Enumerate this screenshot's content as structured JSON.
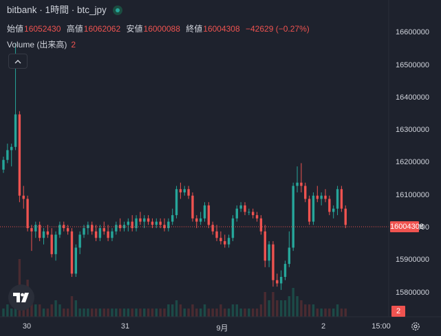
{
  "header": {
    "title": "bitbank · 1時間 · btc_jpy",
    "status_color": "#26a69a"
  },
  "ohlc": {
    "open_label": "始値",
    "open_value": "16052430",
    "high_label": "高値",
    "high_value": "16062062",
    "low_label": "安値",
    "low_value": "16000088",
    "close_label": "終値",
    "close_value": "16004308",
    "change": "−42629 (−0.27%)"
  },
  "volume_legend": {
    "label": "Volume (出来高)",
    "value": "2"
  },
  "price_axis": {
    "ticks": [
      "16600000",
      "16500000",
      "16400000",
      "16300000",
      "16200000",
      "16100000",
      "16000000",
      "15900000",
      "15800000"
    ],
    "current_price_tag": "16004308",
    "volume_tag": "2"
  },
  "time_axis": {
    "ticks": [
      "30",
      "31",
      "9月",
      "2",
      "15:00"
    ]
  },
  "colors": {
    "up": "#26a69a",
    "down": "#ef5350",
    "background": "#1e222d",
    "up_volume": "#1c4a47",
    "down_volume": "#4a2b31"
  },
  "icons": {
    "collapse": "chevron-up-icon",
    "logo": "tradingview-logo",
    "settings": "gear-icon"
  },
  "chart_data": {
    "type": "candlestick",
    "interval": "1時間",
    "symbol": "btc_jpy",
    "y_ticks": [
      15800000,
      15900000,
      16000000,
      16100000,
      16200000,
      16300000,
      16400000,
      16500000,
      16600000
    ],
    "x_ticks": [
      "30",
      "31",
      "9月",
      "2",
      "15:00"
    ],
    "current_price": 16004308,
    "candles": [
      [
        16180000,
        16220000,
        16170000,
        16210000,
        2
      ],
      [
        16210000,
        16260000,
        16200000,
        16240000,
        3
      ],
      [
        16240000,
        16260000,
        16190000,
        16250000,
        2
      ],
      [
        16250000,
        16570000,
        16240000,
        16350000,
        6
      ],
      [
        16350000,
        16360000,
        16080000,
        16100000,
        14
      ],
      [
        16100000,
        16130000,
        16060000,
        16090000,
        5
      ],
      [
        16090000,
        16100000,
        15990000,
        16000000,
        9
      ],
      [
        16000000,
        16010000,
        15930000,
        15990000,
        4
      ],
      [
        15990000,
        16020000,
        15970000,
        16010000,
        3
      ],
      [
        16010000,
        16020000,
        15960000,
        15970000,
        3
      ],
      [
        15970000,
        16000000,
        15950000,
        15990000,
        2
      ],
      [
        15990000,
        16010000,
        15970000,
        15980000,
        2
      ],
      [
        15980000,
        16000000,
        15910000,
        15920000,
        3
      ],
      [
        15920000,
        15990000,
        15900000,
        15980000,
        4
      ],
      [
        15980000,
        16020000,
        15970000,
        16010000,
        3
      ],
      [
        16010000,
        16020000,
        15990000,
        16000000,
        2
      ],
      [
        16000000,
        16010000,
        15980000,
        15990000,
        2
      ],
      [
        15990000,
        16000000,
        15850000,
        15860000,
        5
      ],
      [
        15860000,
        15950000,
        15850000,
        15940000,
        4
      ],
      [
        15940000,
        15990000,
        15920000,
        15980000,
        2
      ],
      [
        15980000,
        16010000,
        15970000,
        16000000,
        2
      ],
      [
        16000000,
        16020000,
        15980000,
        16010000,
        2
      ],
      [
        16010000,
        16020000,
        15980000,
        15990000,
        2
      ],
      [
        15990000,
        16010000,
        15960000,
        15970000,
        2
      ],
      [
        15970000,
        16010000,
        15960000,
        16000000,
        2
      ],
      [
        16000000,
        16020000,
        15980000,
        15990000,
        2
      ],
      [
        15990000,
        16010000,
        15960000,
        15970000,
        2
      ],
      [
        15970000,
        16000000,
        15960000,
        15990000,
        2
      ],
      [
        15990000,
        16020000,
        15980000,
        16010000,
        2
      ],
      [
        16010000,
        16030000,
        15990000,
        16000000,
        2
      ],
      [
        16000000,
        16020000,
        15990000,
        16010000,
        2
      ],
      [
        16010000,
        16030000,
        15990000,
        16020000,
        2
      ],
      [
        16020000,
        16040000,
        15990000,
        16000000,
        2
      ],
      [
        16000000,
        16040000,
        15990000,
        16030000,
        2
      ],
      [
        16030000,
        16050000,
        16010000,
        16020000,
        2
      ],
      [
        16020000,
        16040000,
        16000000,
        16030000,
        2
      ],
      [
        16030000,
        16040000,
        16010000,
        16020000,
        2
      ],
      [
        16020000,
        16030000,
        16000000,
        16010000,
        2
      ],
      [
        16010000,
        16030000,
        16000000,
        16020000,
        2
      ],
      [
        16020000,
        16030000,
        16000000,
        16010000,
        2
      ],
      [
        16010000,
        16030000,
        15990000,
        16000000,
        2
      ],
      [
        16000000,
        16030000,
        15990000,
        16020000,
        3
      ],
      [
        16020000,
        16060000,
        16010000,
        16040000,
        3
      ],
      [
        16040000,
        16130000,
        16030000,
        16120000,
        4
      ],
      [
        16120000,
        16140000,
        16090000,
        16110000,
        3
      ],
      [
        16110000,
        16130000,
        16100000,
        16120000,
        2
      ],
      [
        16120000,
        16130000,
        16090000,
        16100000,
        2
      ],
      [
        16100000,
        16110000,
        16020000,
        16030000,
        3
      ],
      [
        16030000,
        16040000,
        16000000,
        16020000,
        2
      ],
      [
        16020000,
        16050000,
        16010000,
        16030000,
        2
      ],
      [
        16030000,
        16080000,
        16020000,
        16070000,
        3
      ],
      [
        16070000,
        16080000,
        16000000,
        16010000,
        2
      ],
      [
        16010000,
        16020000,
        15980000,
        15990000,
        2
      ],
      [
        15990000,
        16010000,
        15960000,
        15970000,
        2
      ],
      [
        15970000,
        15990000,
        15950000,
        15960000,
        3
      ],
      [
        15960000,
        15980000,
        15940000,
        15950000,
        2
      ],
      [
        15950000,
        15980000,
        15940000,
        15970000,
        2
      ],
      [
        15970000,
        16040000,
        15960000,
        16030000,
        3
      ],
      [
        16030000,
        16070000,
        16020000,
        16060000,
        3
      ],
      [
        16060000,
        16080000,
        16050000,
        16070000,
        2
      ],
      [
        16070000,
        16080000,
        16040000,
        16050000,
        2
      ],
      [
        16050000,
        16060000,
        16040000,
        16050000,
        2
      ],
      [
        16050000,
        16060000,
        16030000,
        16040000,
        2
      ],
      [
        16040000,
        16050000,
        16020000,
        16030000,
        2
      ],
      [
        16030000,
        16040000,
        15980000,
        15990000,
        3
      ],
      [
        15990000,
        16010000,
        15880000,
        15900000,
        6
      ],
      [
        15900000,
        15960000,
        15880000,
        15950000,
        4
      ],
      [
        15950000,
        15960000,
        15820000,
        15840000,
        6
      ],
      [
        15840000,
        15860000,
        15820000,
        15830000,
        4
      ],
      [
        15830000,
        15870000,
        15810000,
        15850000,
        4
      ],
      [
        15850000,
        15900000,
        15840000,
        15890000,
        4
      ],
      [
        15890000,
        15990000,
        15880000,
        15940000,
        5
      ],
      [
        15940000,
        16140000,
        15930000,
        16130000,
        7
      ],
      [
        16130000,
        16190000,
        16110000,
        16140000,
        5
      ],
      [
        16140000,
        16200000,
        16110000,
        16130000,
        4
      ],
      [
        16130000,
        16140000,
        16080000,
        16090000,
        3
      ],
      [
        16090000,
        16100000,
        16010000,
        16020000,
        3
      ],
      [
        16020000,
        16110000,
        16010000,
        16100000,
        3
      ],
      [
        16100000,
        16130000,
        16080000,
        16090000,
        2
      ],
      [
        16090000,
        16110000,
        16070000,
        16100000,
        2
      ],
      [
        16100000,
        16120000,
        16080000,
        16090000,
        2
      ],
      [
        16090000,
        16100000,
        16040000,
        16050000,
        2
      ],
      [
        16050000,
        16070000,
        16030000,
        16060000,
        2
      ],
      [
        16060000,
        16130000,
        16040000,
        16120000,
        3
      ],
      [
        16120000,
        16130000,
        16050000,
        16060000,
        2
      ],
      [
        16060000,
        16070000,
        16000000,
        16010000,
        2
      ]
    ]
  }
}
